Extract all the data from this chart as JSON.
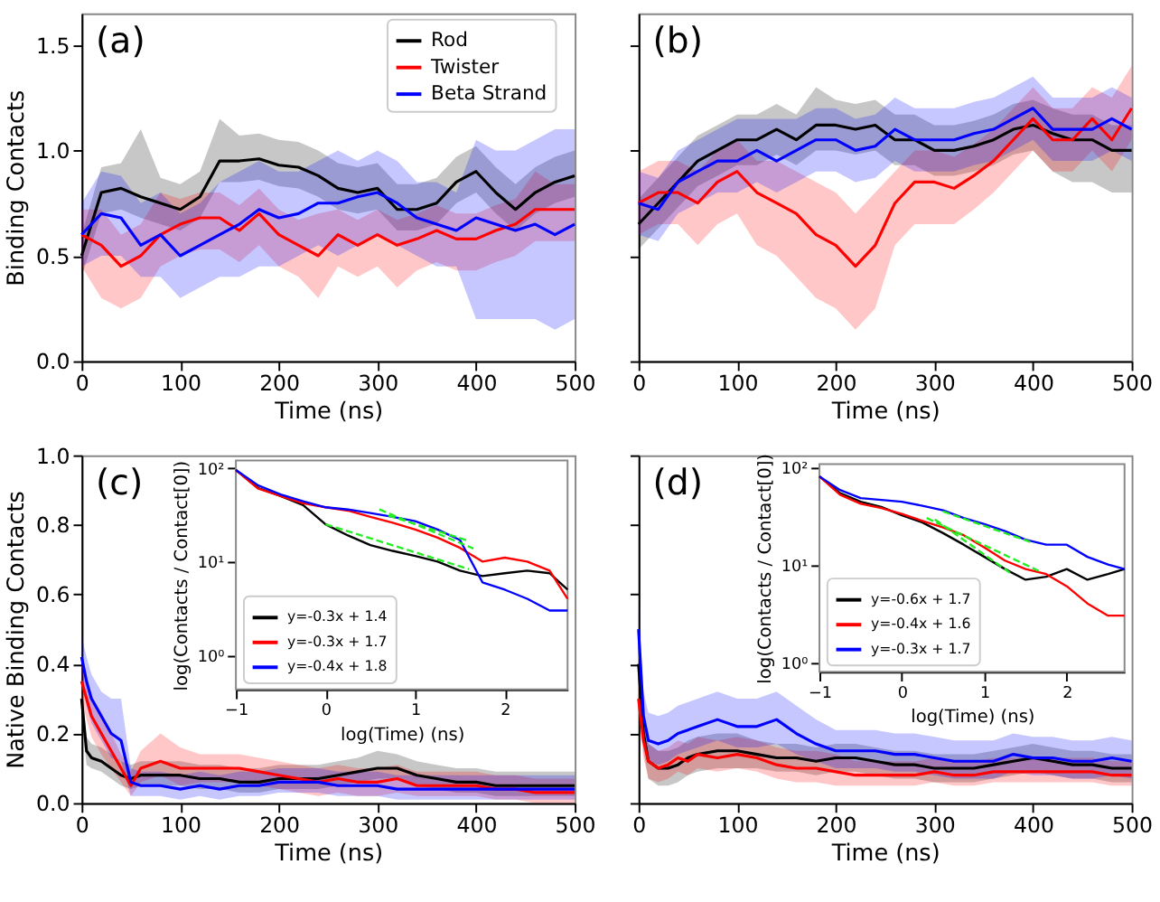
{
  "chart_data": [
    {
      "type": "line",
      "xlabel": "Time (ns)",
      "ylabel": "Binding Contacts",
      "annotations": [
        "(a)"
      ],
      "legend": "top right",
      "xlim": [
        0,
        500
      ],
      "xticks": [
        0,
        100,
        200,
        300,
        400,
        500
      ],
      "ylim": [
        0,
        1.65
      ],
      "yticks": [
        {
          "value": 0,
          "label": "0.0"
        },
        0.5,
        {
          "value": 1,
          "label": "1.0"
        },
        1.5
      ],
      "x": [
        0,
        20,
        40,
        60,
        80,
        100,
        120,
        140,
        160,
        180,
        200,
        220,
        240,
        260,
        280,
        300,
        320,
        340,
        360,
        380,
        400,
        420,
        440,
        460,
        480,
        500
      ],
      "series": [
        {
          "name": "Rod",
          "color": "#000000",
          "values": [
            0.5,
            0.8,
            0.82,
            0.78,
            0.75,
            0.72,
            0.78,
            0.95,
            0.95,
            0.96,
            0.93,
            0.92,
            0.88,
            0.82,
            0.8,
            0.82,
            0.72,
            0.72,
            0.75,
            0.85,
            0.9,
            0.8,
            0.72,
            0.8,
            0.85,
            0.88
          ],
          "lower": [
            0.4,
            0.7,
            0.72,
            0.68,
            0.65,
            0.62,
            0.68,
            0.85,
            0.85,
            0.86,
            0.83,
            0.82,
            0.78,
            0.72,
            0.7,
            0.72,
            0.62,
            0.62,
            0.65,
            0.75,
            0.8,
            0.7,
            0.62,
            0.7,
            0.75,
            0.78
          ],
          "upper": [
            0.6,
            0.92,
            0.94,
            1.1,
            0.87,
            0.84,
            0.9,
            1.15,
            1.07,
            1.08,
            1.05,
            1.04,
            1.0,
            0.94,
            0.92,
            0.94,
            0.84,
            0.84,
            0.87,
            0.97,
            1.02,
            0.92,
            0.84,
            0.92,
            0.97,
            1.0
          ]
        },
        {
          "name": "Twister",
          "color": "#ff0000",
          "values": [
            0.6,
            0.55,
            0.45,
            0.5,
            0.6,
            0.65,
            0.68,
            0.68,
            0.62,
            0.7,
            0.6,
            0.55,
            0.5,
            0.6,
            0.55,
            0.6,
            0.55,
            0.58,
            0.62,
            0.58,
            0.58,
            0.62,
            0.65,
            0.72,
            0.72,
            0.72
          ],
          "lower": [
            0.45,
            0.3,
            0.25,
            0.3,
            0.45,
            0.5,
            0.53,
            0.53,
            0.47,
            0.55,
            0.45,
            0.4,
            0.3,
            0.45,
            0.4,
            0.45,
            0.35,
            0.43,
            0.47,
            0.43,
            0.43,
            0.47,
            0.5,
            0.57,
            0.57,
            0.57
          ],
          "upper": [
            0.72,
            0.72,
            0.6,
            0.65,
            0.8,
            0.77,
            0.8,
            0.8,
            0.74,
            0.82,
            0.72,
            0.67,
            0.7,
            0.72,
            0.67,
            0.72,
            0.67,
            0.7,
            0.74,
            0.7,
            0.7,
            0.74,
            0.77,
            0.9,
            0.84,
            0.84
          ]
        },
        {
          "name": "Beta Strand",
          "color": "#0000ff",
          "values": [
            0.6,
            0.7,
            0.68,
            0.55,
            0.6,
            0.5,
            0.55,
            0.6,
            0.65,
            0.72,
            0.68,
            0.7,
            0.75,
            0.75,
            0.78,
            0.8,
            0.75,
            0.68,
            0.65,
            0.62,
            0.68,
            0.65,
            0.62,
            0.65,
            0.6,
            0.65
          ],
          "lower": [
            0.45,
            0.5,
            0.5,
            0.4,
            0.4,
            0.3,
            0.35,
            0.4,
            0.4,
            0.45,
            0.45,
            0.5,
            0.55,
            0.5,
            0.55,
            0.6,
            0.55,
            0.5,
            0.45,
            0.45,
            0.2,
            0.2,
            0.2,
            0.2,
            0.15,
            0.2
          ],
          "upper": [
            0.75,
            0.9,
            0.88,
            0.75,
            0.8,
            0.7,
            0.75,
            0.85,
            0.9,
            0.95,
            0.9,
            0.9,
            0.95,
            1.0,
            0.95,
            1.0,
            0.95,
            0.85,
            0.85,
            0.8,
            1.05,
            1.0,
            1.0,
            1.05,
            1.1,
            1.1
          ]
        }
      ]
    },
    {
      "type": "line",
      "xlabel": "Time (ns)",
      "annotations": [
        "(b)"
      ],
      "tick_labels": "x",
      "xlim": [
        0,
        500
      ],
      "xticks": [
        0,
        100,
        200,
        300,
        400,
        500
      ],
      "ylim": [
        0,
        1.65
      ],
      "yticks": [
        0,
        0.5,
        1,
        1.5
      ],
      "x": [
        0,
        20,
        40,
        60,
        80,
        100,
        120,
        140,
        160,
        180,
        200,
        220,
        240,
        260,
        280,
        300,
        320,
        340,
        360,
        380,
        400,
        420,
        440,
        460,
        480,
        500
      ],
      "series": [
        {
          "color": "#000000",
          "values": [
            0.65,
            0.75,
            0.85,
            0.95,
            1.0,
            1.05,
            1.05,
            1.1,
            1.05,
            1.12,
            1.12,
            1.1,
            1.12,
            1.05,
            1.05,
            1.0,
            1.0,
            1.02,
            1.05,
            1.1,
            1.12,
            1.08,
            1.05,
            1.05,
            1.0,
            1.0
          ],
          "lower": [
            0.53,
            0.63,
            0.73,
            0.83,
            0.88,
            0.93,
            0.93,
            0.98,
            0.93,
            1.0,
            1.0,
            0.98,
            1.0,
            0.93,
            0.93,
            0.88,
            0.88,
            0.9,
            0.93,
            0.98,
            1.0,
            0.9,
            0.85,
            0.85,
            0.8,
            0.8
          ],
          "upper": [
            0.77,
            0.87,
            0.97,
            1.07,
            1.12,
            1.17,
            1.17,
            1.22,
            1.17,
            1.3,
            1.24,
            1.22,
            1.24,
            1.17,
            1.17,
            1.12,
            1.12,
            1.14,
            1.17,
            1.22,
            1.24,
            1.2,
            1.17,
            1.17,
            1.12,
            1.12
          ]
        },
        {
          "color": "#ff0000",
          "values": [
            0.75,
            0.8,
            0.8,
            0.75,
            0.85,
            0.9,
            0.8,
            0.75,
            0.7,
            0.6,
            0.55,
            0.45,
            0.55,
            0.75,
            0.85,
            0.85,
            0.82,
            0.88,
            0.95,
            1.05,
            1.15,
            1.05,
            1.05,
            1.15,
            1.05,
            1.2
          ],
          "lower": [
            0.6,
            0.65,
            0.65,
            0.55,
            0.65,
            0.7,
            0.55,
            0.5,
            0.4,
            0.3,
            0.25,
            0.15,
            0.25,
            0.55,
            0.65,
            0.65,
            0.65,
            0.72,
            0.8,
            0.9,
            1.0,
            0.9,
            0.9,
            1.0,
            0.9,
            1.05
          ],
          "upper": [
            0.9,
            0.95,
            0.95,
            0.9,
            1.0,
            1.05,
            0.95,
            0.95,
            0.9,
            0.85,
            0.8,
            0.7,
            0.8,
            0.9,
            1.0,
            1.0,
            0.97,
            1.03,
            1.1,
            1.2,
            1.3,
            1.2,
            1.2,
            1.3,
            1.25,
            1.4
          ]
        },
        {
          "color": "#0000ff",
          "values": [
            0.75,
            0.72,
            0.85,
            0.9,
            0.95,
            0.95,
            1.0,
            0.95,
            1.0,
            1.05,
            1.05,
            1.0,
            1.02,
            1.1,
            1.05,
            1.05,
            1.05,
            1.08,
            1.1,
            1.15,
            1.2,
            1.1,
            1.1,
            1.1,
            1.15,
            1.1
          ],
          "lower": [
            0.6,
            0.57,
            0.7,
            0.75,
            0.8,
            0.8,
            0.85,
            0.8,
            0.85,
            0.9,
            0.9,
            0.85,
            0.87,
            0.95,
            0.9,
            0.9,
            0.9,
            0.93,
            0.95,
            1.0,
            1.05,
            0.95,
            0.95,
            0.95,
            1.0,
            0.95
          ],
          "upper": [
            0.9,
            0.87,
            1.0,
            1.05,
            1.1,
            1.15,
            1.15,
            1.15,
            1.15,
            1.2,
            1.2,
            1.15,
            1.17,
            1.25,
            1.2,
            1.2,
            1.2,
            1.23,
            1.25,
            1.3,
            1.35,
            1.25,
            1.25,
            1.25,
            1.3,
            1.25
          ]
        }
      ]
    },
    {
      "type": "line",
      "xlabel": "Time (ns)",
      "ylabel": "Native Binding Contacts",
      "annotations": [
        "(c)"
      ],
      "xlim": [
        0,
        500
      ],
      "xticks": [
        0,
        100,
        200,
        300,
        400,
        500
      ],
      "ylim": [
        0,
        1
      ],
      "yticks": [
        {
          "value": 0,
          "label": "0.0"
        },
        0.2,
        0.4,
        0.6,
        0.8,
        {
          "value": 1,
          "label": "1.0"
        }
      ],
      "x": [
        0,
        5,
        10,
        20,
        30,
        40,
        50,
        60,
        80,
        100,
        120,
        140,
        160,
        180,
        200,
        220,
        240,
        260,
        280,
        300,
        320,
        340,
        360,
        380,
        400,
        420,
        440,
        460,
        480,
        500
      ],
      "series": [
        {
          "color": "#000000",
          "values": [
            0.3,
            0.15,
            0.13,
            0.12,
            0.1,
            0.08,
            0.07,
            0.08,
            0.08,
            0.08,
            0.07,
            0.07,
            0.06,
            0.06,
            0.07,
            0.07,
            0.07,
            0.08,
            0.09,
            0.1,
            0.1,
            0.08,
            0.07,
            0.06,
            0.06,
            0.05,
            0.05,
            0.05,
            0.05,
            0.05
          ],
          "lower": [
            0.25,
            0.11,
            0.1,
            0.09,
            0.07,
            0.05,
            0.04,
            0.05,
            0.05,
            0.05,
            0.04,
            0.04,
            0.03,
            0.03,
            0.04,
            0.04,
            0.04,
            0.05,
            0.06,
            0.07,
            0.07,
            0.05,
            0.04,
            0.03,
            0.03,
            0.02,
            0.02,
            0.02,
            0.02,
            0.02
          ],
          "upper": [
            0.35,
            0.19,
            0.17,
            0.16,
            0.14,
            0.12,
            0.11,
            0.12,
            0.12,
            0.12,
            0.11,
            0.11,
            0.1,
            0.1,
            0.11,
            0.11,
            0.11,
            0.12,
            0.13,
            0.15,
            0.14,
            0.12,
            0.11,
            0.1,
            0.1,
            0.09,
            0.09,
            0.09,
            0.09,
            0.09
          ]
        },
        {
          "color": "#ff0000",
          "values": [
            0.35,
            0.3,
            0.25,
            0.2,
            0.15,
            0.1,
            0.05,
            0.1,
            0.12,
            0.1,
            0.1,
            0.1,
            0.1,
            0.09,
            0.08,
            0.07,
            0.06,
            0.07,
            0.06,
            0.06,
            0.07,
            0.05,
            0.05,
            0.05,
            0.05,
            0.04,
            0.04,
            0.03,
            0.03,
            0.03
          ],
          "lower": [
            0.3,
            0.24,
            0.19,
            0.14,
            0.1,
            0.06,
            0.02,
            0.06,
            0.08,
            0.05,
            0.06,
            0.06,
            0.06,
            0.05,
            0.04,
            0.03,
            0.02,
            0.03,
            0.02,
            0.02,
            0.03,
            0.02,
            0.02,
            0.02,
            0.02,
            0.01,
            0.01,
            0.0,
            0.0,
            0.0
          ],
          "upper": [
            0.42,
            0.36,
            0.31,
            0.26,
            0.2,
            0.14,
            0.09,
            0.15,
            0.2,
            0.16,
            0.14,
            0.14,
            0.14,
            0.13,
            0.12,
            0.11,
            0.1,
            0.11,
            0.1,
            0.1,
            0.11,
            0.09,
            0.09,
            0.09,
            0.09,
            0.08,
            0.08,
            0.07,
            0.07,
            0.07
          ]
        },
        {
          "color": "#0000ff",
          "values": [
            0.42,
            0.35,
            0.3,
            0.25,
            0.2,
            0.18,
            0.06,
            0.05,
            0.05,
            0.04,
            0.05,
            0.04,
            0.05,
            0.05,
            0.06,
            0.06,
            0.06,
            0.05,
            0.05,
            0.05,
            0.04,
            0.04,
            0.04,
            0.04,
            0.04,
            0.04,
            0.04,
            0.04,
            0.04,
            0.04
          ],
          "lower": [
            0.36,
            0.28,
            0.23,
            0.18,
            0.13,
            0.12,
            0.02,
            0.02,
            0.02,
            0.01,
            0.02,
            0.01,
            0.02,
            0.02,
            0.03,
            0.03,
            0.03,
            0.02,
            0.02,
            0.02,
            0.01,
            0.01,
            0.01,
            0.01,
            0.01,
            0.01,
            0.01,
            0.01,
            0.01,
            0.01
          ],
          "upper": [
            0.48,
            0.42,
            0.37,
            0.32,
            0.3,
            0.3,
            0.1,
            0.09,
            0.09,
            0.08,
            0.09,
            0.08,
            0.09,
            0.09,
            0.1,
            0.1,
            0.1,
            0.09,
            0.09,
            0.09,
            0.08,
            0.08,
            0.08,
            0.08,
            0.08,
            0.08,
            0.08,
            0.08,
            0.08,
            0.08
          ]
        }
      ]
    },
    {
      "type": "line",
      "xlabel": "Time (ns)",
      "annotations": [
        "(d)"
      ],
      "tick_labels": "x",
      "xlim": [
        0,
        500
      ],
      "xticks": [
        0,
        100,
        200,
        300,
        400,
        500
      ],
      "ylim": [
        0,
        1
      ],
      "yticks": [
        0,
        0.2,
        0.4,
        0.6,
        0.8,
        1
      ],
      "x": [
        0,
        5,
        10,
        20,
        30,
        40,
        50,
        60,
        80,
        100,
        120,
        140,
        160,
        180,
        200,
        220,
        240,
        260,
        280,
        300,
        320,
        340,
        360,
        380,
        400,
        420,
        440,
        460,
        480,
        500
      ],
      "series": [
        {
          "color": "#000000",
          "values": [
            0.4,
            0.2,
            0.12,
            0.1,
            0.1,
            0.11,
            0.13,
            0.14,
            0.15,
            0.15,
            0.14,
            0.13,
            0.13,
            0.12,
            0.13,
            0.13,
            0.12,
            0.11,
            0.11,
            0.1,
            0.1,
            0.1,
            0.11,
            0.12,
            0.13,
            0.12,
            0.11,
            0.11,
            0.1,
            0.1
          ],
          "lower": [
            0.34,
            0.15,
            0.07,
            0.05,
            0.05,
            0.06,
            0.08,
            0.09,
            0.1,
            0.1,
            0.1,
            0.09,
            0.09,
            0.08,
            0.09,
            0.09,
            0.08,
            0.07,
            0.07,
            0.06,
            0.06,
            0.06,
            0.07,
            0.08,
            0.09,
            0.08,
            0.07,
            0.07,
            0.06,
            0.06
          ],
          "upper": [
            0.46,
            0.25,
            0.17,
            0.15,
            0.15,
            0.16,
            0.18,
            0.19,
            0.2,
            0.2,
            0.18,
            0.17,
            0.17,
            0.16,
            0.17,
            0.17,
            0.16,
            0.15,
            0.15,
            0.14,
            0.14,
            0.14,
            0.15,
            0.16,
            0.17,
            0.16,
            0.15,
            0.15,
            0.14,
            0.14
          ]
        },
        {
          "color": "#ff0000",
          "values": [
            0.3,
            0.18,
            0.12,
            0.1,
            0.11,
            0.13,
            0.12,
            0.14,
            0.13,
            0.14,
            0.13,
            0.11,
            0.1,
            0.1,
            0.09,
            0.08,
            0.08,
            0.08,
            0.08,
            0.09,
            0.08,
            0.08,
            0.09,
            0.09,
            0.09,
            0.09,
            0.09,
            0.09,
            0.08,
            0.08
          ],
          "lower": [
            0.25,
            0.13,
            0.07,
            0.06,
            0.07,
            0.09,
            0.08,
            0.1,
            0.09,
            0.1,
            0.09,
            0.07,
            0.06,
            0.06,
            0.05,
            0.05,
            0.05,
            0.05,
            0.05,
            0.06,
            0.05,
            0.05,
            0.06,
            0.06,
            0.06,
            0.06,
            0.06,
            0.06,
            0.05,
            0.05
          ],
          "upper": [
            0.36,
            0.23,
            0.17,
            0.15,
            0.16,
            0.18,
            0.17,
            0.19,
            0.18,
            0.19,
            0.18,
            0.16,
            0.15,
            0.15,
            0.14,
            0.12,
            0.12,
            0.12,
            0.12,
            0.13,
            0.12,
            0.12,
            0.13,
            0.13,
            0.13,
            0.13,
            0.13,
            0.13,
            0.12,
            0.12
          ]
        },
        {
          "color": "#0000ff",
          "values": [
            0.5,
            0.25,
            0.18,
            0.17,
            0.18,
            0.2,
            0.21,
            0.22,
            0.24,
            0.22,
            0.22,
            0.24,
            0.2,
            0.17,
            0.15,
            0.15,
            0.15,
            0.14,
            0.14,
            0.13,
            0.12,
            0.12,
            0.12,
            0.14,
            0.13,
            0.13,
            0.12,
            0.12,
            0.13,
            0.12
          ],
          "lower": [
            0.44,
            0.19,
            0.12,
            0.11,
            0.12,
            0.14,
            0.15,
            0.16,
            0.18,
            0.16,
            0.16,
            0.17,
            0.14,
            0.12,
            0.1,
            0.1,
            0.1,
            0.09,
            0.09,
            0.08,
            0.07,
            0.07,
            0.07,
            0.09,
            0.08,
            0.08,
            0.07,
            0.07,
            0.08,
            0.07
          ],
          "upper": [
            0.56,
            0.32,
            0.26,
            0.25,
            0.26,
            0.28,
            0.29,
            0.3,
            0.32,
            0.3,
            0.3,
            0.32,
            0.28,
            0.24,
            0.21,
            0.21,
            0.21,
            0.2,
            0.2,
            0.19,
            0.18,
            0.18,
            0.18,
            0.2,
            0.19,
            0.19,
            0.18,
            0.18,
            0.19,
            0.18
          ]
        }
      ]
    },
    {
      "type": "line",
      "xlabel": "log(Time) (ns)",
      "ylabel": "log(Contacts / Contact[0])",
      "legend": "bottom left",
      "log": "y",
      "xlim": [
        -1,
        2.7
      ],
      "xticks": [
        -1,
        0,
        1,
        2
      ],
      "ylim": [
        0.43,
        120
      ],
      "yticks": [
        {
          "value": 1,
          "label": "10⁰"
        },
        {
          "value": 10,
          "label": "10¹"
        },
        {
          "value": 100,
          "label": "10²"
        }
      ],
      "x": [
        -1,
        -0.75,
        -0.5,
        -0.25,
        0,
        0.25,
        0.5,
        0.75,
        1,
        1.25,
        1.5,
        1.75,
        2,
        2.25,
        2.5,
        2.7
      ],
      "series": [
        {
          "name": "y=-0.3x + 1.4",
          "color": "#000000",
          "values": [
            95,
            61,
            50,
            40,
            25,
            19,
            15,
            13,
            11.5,
            10,
            8,
            7,
            7.5,
            8,
            7.5,
            5
          ]
        },
        {
          "name": "y=-0.3x + 1.7",
          "color": "#ff0000",
          "values": [
            95,
            60,
            50,
            42,
            38,
            35,
            30,
            26,
            22,
            18,
            14,
            10,
            11,
            10,
            8,
            4
          ]
        },
        {
          "name": "y=-0.4x + 1.8",
          "color": "#0000ff",
          "values": [
            95,
            65,
            52,
            44,
            38,
            36,
            33,
            30,
            27,
            22,
            17,
            6,
            5,
            4,
            3,
            3
          ]
        },
        {
          "type": "line",
          "color": "#22ee22",
          "line_style": "dashed",
          "x": [
            0,
            1.6
          ],
          "values": [
            25,
            8.3
          ]
        },
        {
          "type": "line",
          "color": "#22ee22",
          "line_style": "dashed",
          "x": [
            0.7,
            1.6
          ],
          "values": [
            31,
            16.6
          ]
        },
        {
          "type": "line",
          "color": "#22ee22",
          "line_style": "dashed",
          "x": [
            0.6,
            1.65
          ],
          "values": [
            36,
            13.8
          ]
        }
      ]
    },
    {
      "type": "line",
      "xlabel": "log(Time) (ns)",
      "ylabel": "log(Contacts / Contact[0])",
      "legend": "bottom left",
      "log": "y",
      "xlim": [
        -1,
        2.7
      ],
      "xticks": [
        -1,
        0,
        1,
        2
      ],
      "ylim": [
        0.8,
        107
      ],
      "yticks": [
        {
          "value": 1,
          "label": "10⁰"
        },
        {
          "value": 10,
          "label": "10¹"
        },
        {
          "value": 100,
          "label": "10²"
        }
      ],
      "x": [
        -1,
        -0.75,
        -0.5,
        -0.25,
        0,
        0.25,
        0.5,
        0.75,
        1,
        1.25,
        1.5,
        1.75,
        2,
        2.25,
        2.5,
        2.7
      ],
      "series": [
        {
          "name": "y=-0.6x + 1.7",
          "color": "#000000",
          "values": [
            80,
            54,
            44,
            39,
            32,
            27,
            21,
            16,
            12,
            9,
            7,
            7.5,
            9,
            7,
            8,
            9
          ]
        },
        {
          "name": "y=-0.4x + 1.6",
          "color": "#ff0000",
          "values": [
            80,
            52,
            42,
            38,
            33,
            28,
            24,
            20,
            15,
            11,
            9,
            8,
            6,
            4,
            3,
            3
          ]
        },
        {
          "name": "y=-0.3x + 1.7",
          "color": "#0000ff",
          "values": [
            80,
            58,
            48,
            46,
            44,
            40,
            36,
            30,
            26,
            22,
            18,
            16,
            16,
            12,
            10,
            9
          ]
        },
        {
          "type": "line",
          "color": "#22ee22",
          "line_style": "dashed",
          "x": [
            0.4,
            1.35
          ],
          "values": [
            29,
            7.8
          ]
        },
        {
          "type": "line",
          "color": "#22ee22",
          "line_style": "dashed",
          "x": [
            0.3,
            1.7
          ],
          "values": [
            30,
            8.3
          ]
        },
        {
          "type": "line",
          "color": "#22ee22",
          "line_style": "dashed",
          "x": [
            0.5,
            1.6
          ],
          "values": [
            35,
            16.6
          ]
        }
      ]
    }
  ]
}
